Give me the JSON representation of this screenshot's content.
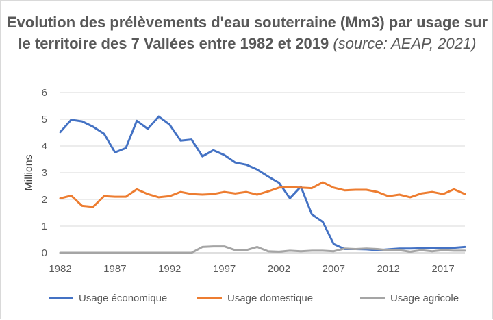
{
  "chart_data": {
    "type": "line",
    "title_main": "Evolution des prélèvements d'eau souterraine (Mm3) par usage sur le territoire des 7 Vallées entre 1982 et 2019",
    "title_source": "(source: AEAP, 2021)",
    "ylabel": "Millions",
    "xlabel": "",
    "ylim": [
      0,
      6
    ],
    "yticks": [
      0,
      1,
      2,
      3,
      4,
      5,
      6
    ],
    "xticks": [
      1982,
      1987,
      1992,
      1997,
      2002,
      2007,
      2012,
      2017
    ],
    "x": [
      1982,
      1983,
      1984,
      1985,
      1986,
      1987,
      1988,
      1989,
      1990,
      1991,
      1992,
      1993,
      1994,
      1995,
      1996,
      1997,
      1998,
      1999,
      2000,
      2001,
      2002,
      2003,
      2004,
      2005,
      2006,
      2007,
      2008,
      2009,
      2010,
      2011,
      2012,
      2013,
      2014,
      2015,
      2016,
      2017,
      2018,
      2019
    ],
    "grid": true,
    "legend_position": "bottom",
    "series": [
      {
        "name": "Usage économique",
        "color": "#4472c4",
        "values": [
          4.52,
          4.98,
          4.92,
          4.72,
          4.46,
          3.76,
          3.92,
          4.94,
          4.64,
          5.1,
          4.8,
          4.2,
          4.24,
          3.61,
          3.84,
          3.66,
          3.38,
          3.3,
          3.12,
          2.86,
          2.62,
          2.04,
          2.48,
          1.44,
          1.16,
          0.33,
          0.14,
          0.14,
          0.13,
          0.1,
          0.13,
          0.16,
          0.16,
          0.17,
          0.17,
          0.19,
          0.19,
          0.22
        ]
      },
      {
        "name": "Usage domestique",
        "color": "#ed7d31",
        "values": [
          2.04,
          2.14,
          1.76,
          1.72,
          2.12,
          2.1,
          2.1,
          2.38,
          2.2,
          2.08,
          2.12,
          2.28,
          2.2,
          2.18,
          2.2,
          2.28,
          2.22,
          2.28,
          2.18,
          2.3,
          2.44,
          2.46,
          2.44,
          2.42,
          2.64,
          2.44,
          2.34,
          2.36,
          2.36,
          2.28,
          2.12,
          2.18,
          2.08,
          2.22,
          2.28,
          2.2,
          2.38,
          2.2
        ]
      },
      {
        "name": "Usage agricole",
        "color": "#a5a5a5",
        "values": [
          0.0,
          0.0,
          0.0,
          0.0,
          0.0,
          0.0,
          0.0,
          0.0,
          0.0,
          0.0,
          0.0,
          0.0,
          0.0,
          0.22,
          0.24,
          0.24,
          0.1,
          0.1,
          0.22,
          0.06,
          0.04,
          0.08,
          0.06,
          0.08,
          0.08,
          0.06,
          0.16,
          0.14,
          0.16,
          0.14,
          0.1,
          0.1,
          0.04,
          0.1,
          0.06,
          0.1,
          0.08,
          0.08
        ]
      }
    ]
  }
}
